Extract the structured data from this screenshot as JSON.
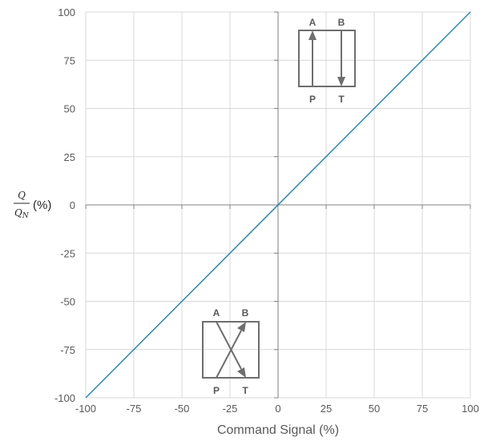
{
  "chart_data": {
    "type": "line",
    "title": "",
    "xlabel": "Command Signal (%)",
    "ylabel": {
      "numerator": "Q",
      "denominator_base": "Q",
      "denominator_sub": "N",
      "suffix": "(%)"
    },
    "xlim": [
      -100,
      100
    ],
    "ylim": [
      -100,
      100
    ],
    "x_ticks": [
      -100,
      -75,
      -50,
      -25,
      0,
      25,
      50,
      75,
      100
    ],
    "y_ticks": [
      100,
      75,
      50,
      25,
      0,
      -25,
      -50,
      -75,
      -100
    ],
    "grid": true,
    "series": [
      {
        "x": [
          -100,
          100
        ],
        "y": [
          -100,
          100
        ],
        "color": "#2e86ab"
      }
    ],
    "annotations": {
      "valve_straight": {
        "top_labels": [
          "A",
          "B"
        ],
        "bottom_labels": [
          "P",
          "T"
        ]
      },
      "valve_crossed": {
        "top_labels": [
          "A",
          "B"
        ],
        "bottom_labels": [
          "P",
          "T"
        ]
      }
    }
  },
  "colors": {
    "grid": "#d9d9d9",
    "axis": "#808080",
    "line": "#2e86ab",
    "symbol": "#6e6e6e",
    "text": "#595959"
  }
}
